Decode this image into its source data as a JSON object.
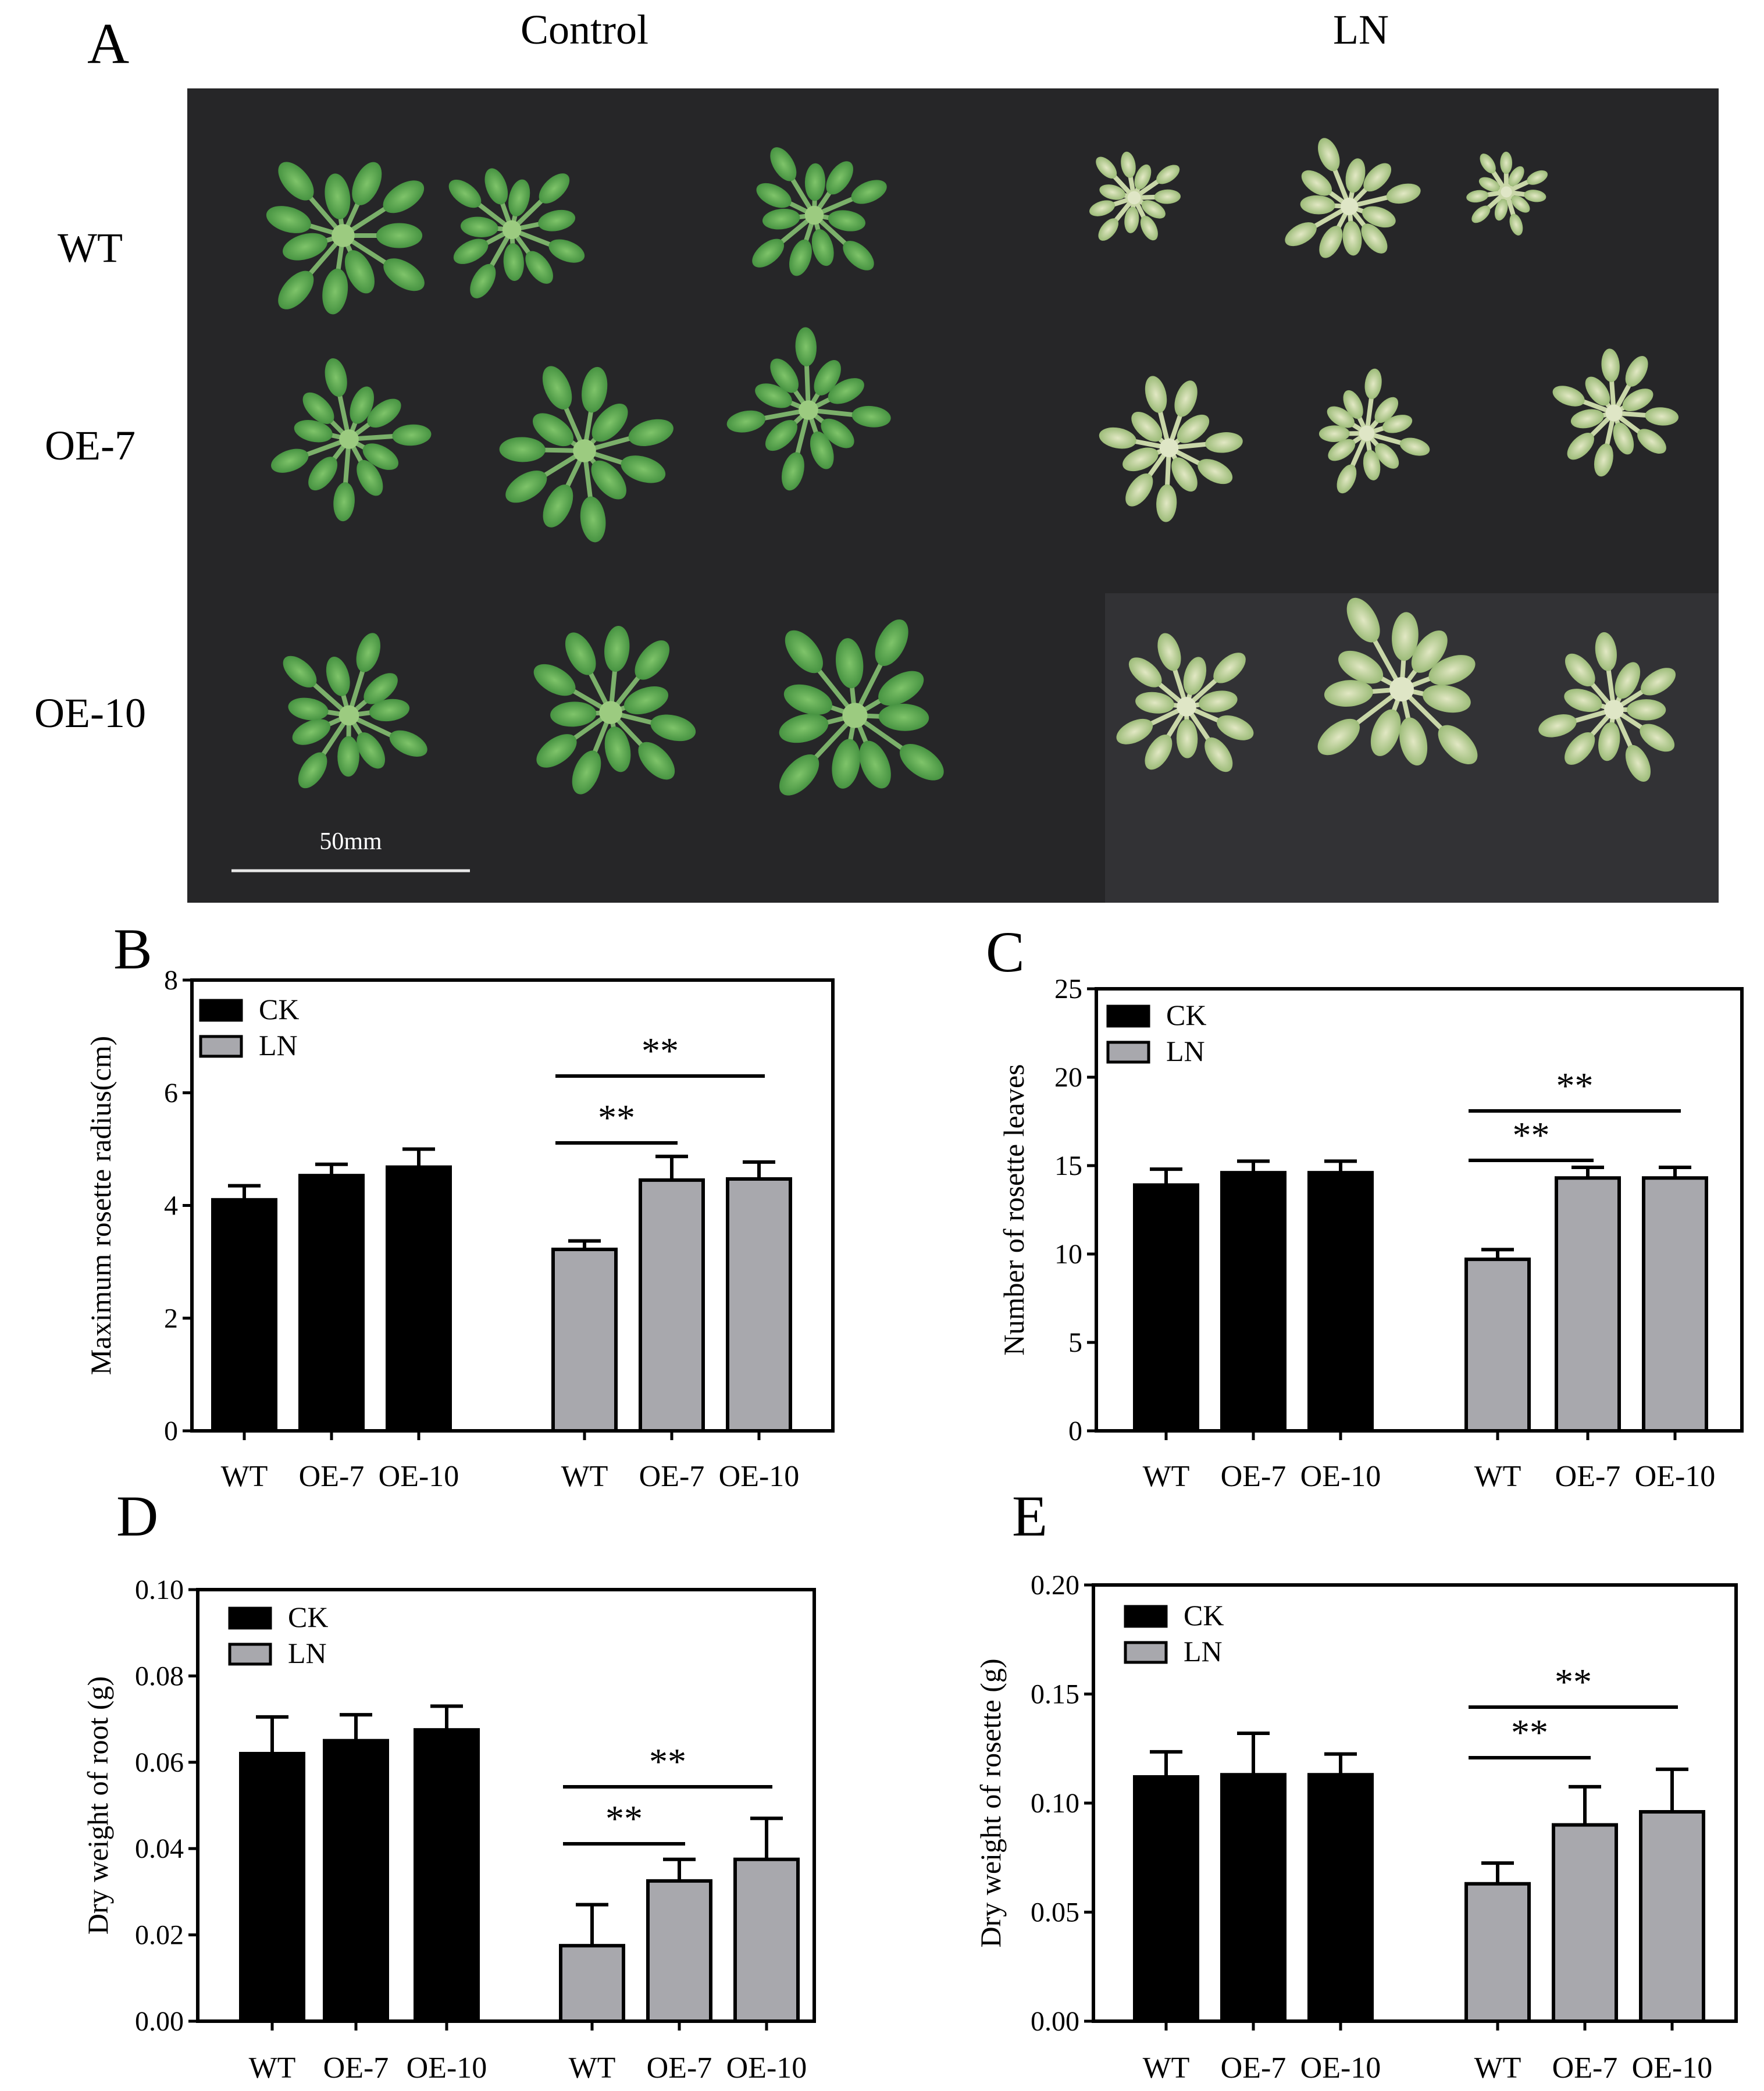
{
  "panel_a": {
    "letter": "A",
    "columns": [
      "Control",
      "LN"
    ],
    "rows": [
      "WT",
      "OE-7",
      "OE-10"
    ],
    "scale_bar": "50mm"
  },
  "chart_data": [
    {
      "panel": "B",
      "type": "bar",
      "categories": [
        "WT",
        "OE-7",
        "OE-10"
      ],
      "series": [
        {
          "name": "CK",
          "color": "#000000",
          "values": [
            4.1,
            4.53,
            4.68
          ],
          "errors": [
            0.25,
            0.2,
            0.32
          ]
        },
        {
          "name": "LN",
          "color": "#a8a8ad",
          "values": [
            3.22,
            4.45,
            4.47
          ],
          "errors": [
            0.15,
            0.42,
            0.3
          ]
        }
      ],
      "ylabel": "Maximum rosette radius(cm)",
      "ylim": [
        0,
        8
      ],
      "yticks": [
        "0",
        "2",
        "4",
        "6",
        "8"
      ],
      "grid": false,
      "legend_position": "top-left",
      "annotations": [
        {
          "text": "**",
          "from": "WT",
          "to": "OE-7",
          "series": "LN"
        },
        {
          "text": "**",
          "from": "WT",
          "to": "OE-10",
          "series": "LN"
        }
      ]
    },
    {
      "panel": "C",
      "type": "bar",
      "categories": [
        "WT",
        "OE-7",
        "OE-10"
      ],
      "series": [
        {
          "name": "CK",
          "color": "#000000",
          "values": [
            13.9,
            14.6,
            14.6
          ],
          "errors": [
            0.9,
            0.65,
            0.65
          ]
        },
        {
          "name": "LN",
          "color": "#a8a8ad",
          "values": [
            9.7,
            14.3,
            14.3
          ],
          "errors": [
            0.55,
            0.6,
            0.6
          ]
        }
      ],
      "ylabel": "Number of rosette leaves",
      "ylim": [
        0,
        25
      ],
      "yticks": [
        "0",
        "5",
        "10",
        "15",
        "20",
        "25"
      ],
      "grid": false,
      "legend_position": "top-left",
      "annotations": [
        {
          "text": "**",
          "from": "WT",
          "to": "OE-7",
          "series": "LN"
        },
        {
          "text": "**",
          "from": "WT",
          "to": "OE-10",
          "series": "LN"
        }
      ]
    },
    {
      "panel": "D",
      "type": "bar",
      "categories": [
        "WT",
        "OE-7",
        "OE-10"
      ],
      "series": [
        {
          "name": "CK",
          "color": "#000000",
          "values": [
            0.062,
            0.065,
            0.0675
          ],
          "errors": [
            0.0085,
            0.006,
            0.0055
          ]
        },
        {
          "name": "LN",
          "color": "#a8a8ad",
          "values": [
            0.0175,
            0.0325,
            0.0375
          ],
          "errors": [
            0.0095,
            0.005,
            0.0095
          ]
        }
      ],
      "ylabel": "Dry weight of root (g)",
      "ylim": [
        0,
        0.1
      ],
      "yticks": [
        "0.00",
        "0.02",
        "0.04",
        "0.06",
        "0.08",
        "0.10"
      ],
      "grid": false,
      "legend_position": "top-left",
      "annotations": [
        {
          "text": "**",
          "from": "WT",
          "to": "OE-7",
          "series": "LN"
        },
        {
          "text": "**",
          "from": "WT",
          "to": "OE-10",
          "series": "LN"
        }
      ]
    },
    {
      "panel": "E",
      "type": "bar",
      "categories": [
        "WT",
        "OE-7",
        "OE-10"
      ],
      "series": [
        {
          "name": "CK",
          "color": "#000000",
          "values": [
            0.112,
            0.113,
            0.113
          ],
          "errors": [
            0.0115,
            0.019,
            0.0095
          ]
        },
        {
          "name": "LN",
          "color": "#a8a8ad",
          "values": [
            0.063,
            0.09,
            0.096
          ],
          "errors": [
            0.0095,
            0.0175,
            0.0195
          ]
        }
      ],
      "ylabel": "Dry weight of rosette (g)",
      "ylim": [
        0,
        0.2
      ],
      "yticks": [
        "0.00",
        "0.05",
        "0.10",
        "0.15",
        "0.20"
      ],
      "grid": false,
      "legend_position": "top-left",
      "annotations": [
        {
          "text": "**",
          "from": "WT",
          "to": "OE-7",
          "series": "LN"
        },
        {
          "text": "**",
          "from": "WT",
          "to": "OE-10",
          "series": "LN"
        }
      ]
    }
  ]
}
